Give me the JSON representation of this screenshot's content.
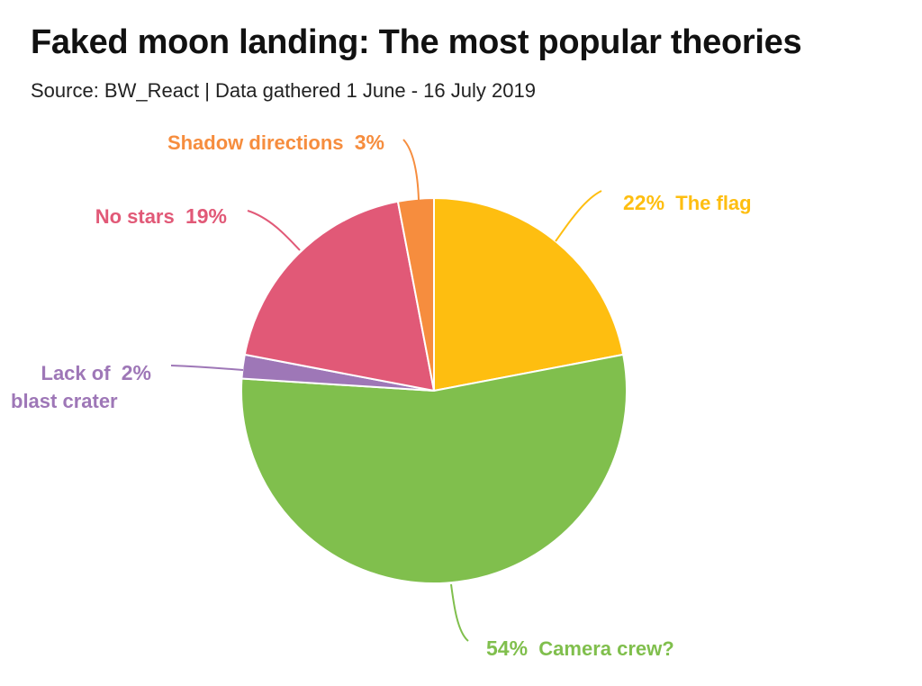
{
  "chart_data": {
    "type": "pie",
    "title": "Faked moon landing: The most popular theories",
    "subtitle": "Source: BW_React | Data gathered 1 June - 16 July 2019",
    "slices": [
      {
        "name": "The flag",
        "name_lines": [
          "The flag"
        ],
        "value": 22,
        "label": "22%",
        "color": "#FEBE10"
      },
      {
        "name": "Camera crew?",
        "name_lines": [
          "Camera crew?"
        ],
        "value": 54,
        "label": "54%",
        "color": "#80BF4D"
      },
      {
        "name": "Lack of blast crater",
        "name_lines": [
          "Lack of",
          "blast crater"
        ],
        "value": 2,
        "label": "2%",
        "color": "#9E77B7"
      },
      {
        "name": "No stars",
        "name_lines": [
          "No stars"
        ],
        "value": 19,
        "label": "19%",
        "color": "#E15977"
      },
      {
        "name": "Shadow directions",
        "name_lines": [
          "Shadow directions"
        ],
        "value": 3,
        "label": "3%",
        "color": "#F68D3E"
      }
    ],
    "direction": "clockwise",
    "start_angle": "12 o'clock",
    "legend": "none"
  }
}
